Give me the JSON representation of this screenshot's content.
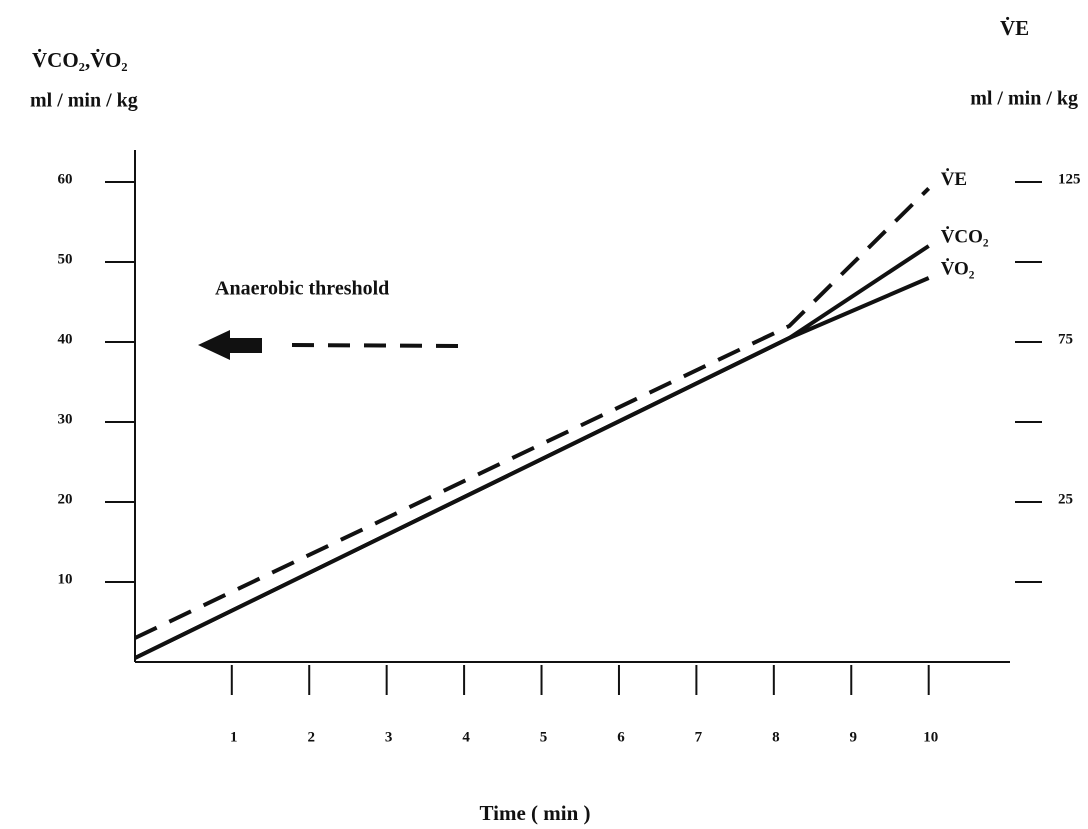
{
  "chart_data": {
    "type": "line",
    "y_axis_title": "V̇CO₂,V̇O₂",
    "y_axis_unit": "ml / min / kg",
    "y2_axis_title": "V̇E",
    "y2_axis_unit": "ml / min / kg",
    "x_axis_title": "Time ( min )",
    "annotation": "Anaerobic threshold",
    "x": [
      -0.25,
      8.2,
      10
    ],
    "series": [
      {
        "name": "V̇E",
        "color": "#111111",
        "dash": true,
        "axis": "y2",
        "values": [
          -17.5,
          80,
          123
        ]
      },
      {
        "name": "V̇CO₂",
        "color": "#111111",
        "dash": false,
        "values": [
          0.5,
          40.5,
          52
        ]
      },
      {
        "name": "V̇O₂",
        "color": "#111111",
        "dash": false,
        "values": [
          0.5,
          40.5,
          48
        ]
      }
    ],
    "xlim": [
      -0.25,
      11.05
    ],
    "xticks": [
      1,
      2,
      3,
      4,
      5,
      6,
      7,
      8,
      9,
      10
    ],
    "ylim": [
      0,
      64
    ],
    "yticks": [
      10,
      20,
      30,
      40,
      50,
      60
    ],
    "y2lim": [
      -25,
      135
    ],
    "y2ticks": [
      {
        "value": 0,
        "label": null
      },
      25,
      {
        "value": 50,
        "label": null
      },
      75,
      {
        "value": 100,
        "label": null
      },
      125
    ]
  }
}
